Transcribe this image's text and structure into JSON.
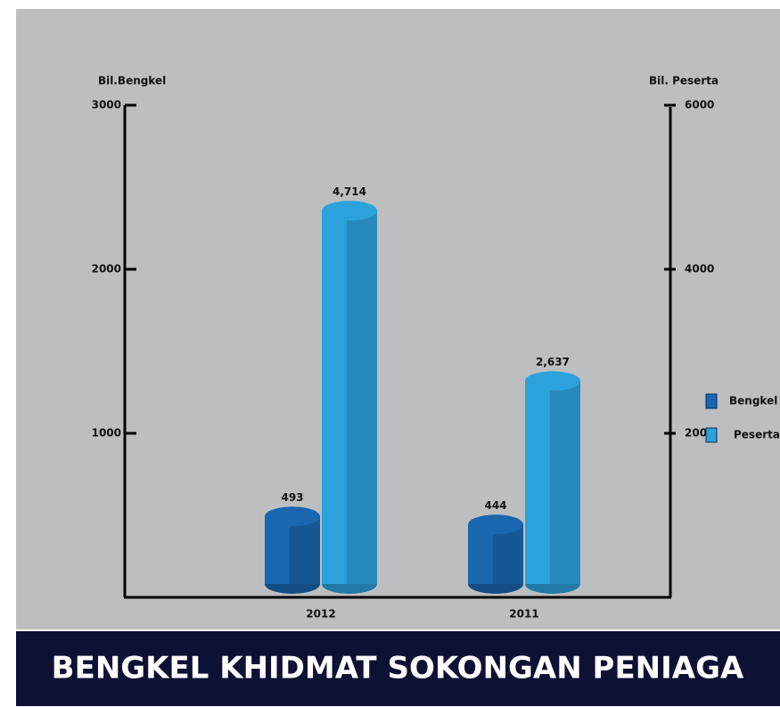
{
  "chart_data": {
    "type": "bar",
    "title": "BENGKEL KHIDMAT SOKONGAN PENIAGA",
    "y_label": "Bil.Bengkel",
    "y2_label": "Bil. Peserta",
    "categories": [
      "2012",
      "2011"
    ],
    "series": [
      {
        "name": "Bengkel",
        "color": "#1a66b0",
        "values": [
          493,
          444
        ]
      },
      {
        "name": "Peserta",
        "color": "#2ba2dc",
        "axis": "y2",
        "values": [
          4714,
          2637
        ],
        "value_labels": [
          "4,714",
          "2,637"
        ]
      }
    ],
    "ylim": [
      0,
      3000
    ],
    "yticks": [
      1000,
      2000,
      3000
    ],
    "y2lim": [
      0,
      6000
    ],
    "y2ticks": [
      2000,
      4000,
      6000
    ],
    "legend": "right"
  }
}
